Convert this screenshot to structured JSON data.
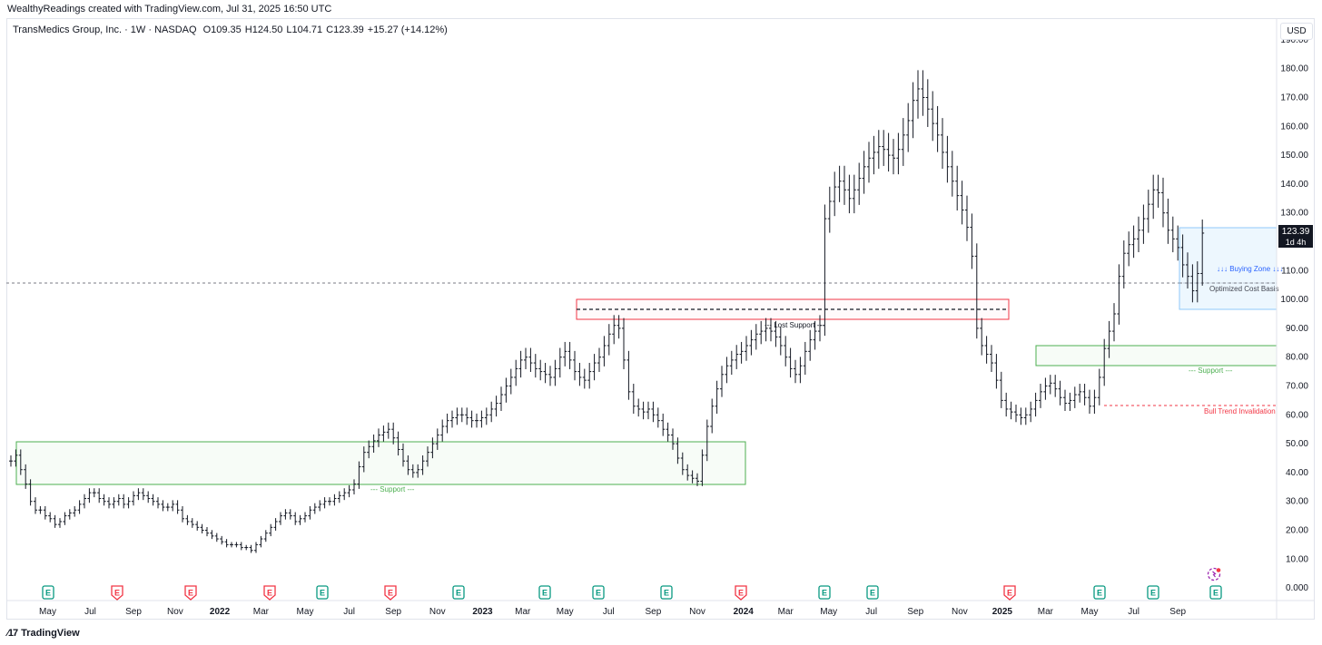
{
  "header": {
    "created_by": "WealthyReadings created with TradingView.com, Jul 31, 2025 16:50 UTC"
  },
  "legend": {
    "symbol": "TransMedics Group, Inc. · 1W · NASDAQ",
    "open": "O109.35",
    "high": "H124.50",
    "low": "L104.71",
    "close": "C123.39",
    "change": "+15.27 (+14.12%)"
  },
  "currency_button": "USD",
  "price_tag": {
    "price": "123.39",
    "countdown": "1d 4h"
  },
  "footer": {
    "brand": "TradingView",
    "logo_icon": "tradingview-logo-icon"
  },
  "colors": {
    "price_tag_bg": "#131722",
    "support_green": "#4caf50",
    "lost_support_red": "#f23645",
    "buy_zone_blue": "#2962ff"
  },
  "chart_data": {
    "type": "ohlc",
    "ylim": [
      -5,
      195
    ],
    "y_ticks": [
      0,
      10,
      20,
      30,
      40,
      50,
      60,
      70,
      80,
      90,
      100,
      110,
      120,
      130,
      140,
      150,
      160,
      170,
      180,
      190
    ],
    "y_tick_labels": [
      "0.000",
      "10.00",
      "20.00",
      "30.00",
      "40.00",
      "50.00",
      "60.00",
      "70.00",
      "80.00",
      "90.00",
      "100.00",
      "110.00",
      "120.00",
      "130.00",
      "140.00",
      "150.00",
      "160.00",
      "170.00",
      "180.00",
      "190.00"
    ],
    "xlim": [
      0,
      277
    ],
    "x_ticks": [
      {
        "week": 7.5,
        "label": "May",
        "bold": false
      },
      {
        "week": 16.2,
        "label": "Jul",
        "bold": false
      },
      {
        "week": 25,
        "label": "Sep",
        "bold": false
      },
      {
        "week": 33.5,
        "label": "Nov",
        "bold": false
      },
      {
        "week": 42.6,
        "label": "2022",
        "bold": true
      },
      {
        "week": 51,
        "label": "Mar",
        "bold": false
      },
      {
        "week": 60,
        "label": "May",
        "bold": false
      },
      {
        "week": 69,
        "label": "Jul",
        "bold": false
      },
      {
        "week": 78,
        "label": "Sep",
        "bold": false
      },
      {
        "week": 87,
        "label": "Nov",
        "bold": false
      },
      {
        "week": 96.2,
        "label": "2023",
        "bold": true
      },
      {
        "week": 104.4,
        "label": "Mar",
        "bold": false
      },
      {
        "week": 113,
        "label": "May",
        "bold": false
      },
      {
        "week": 121.9,
        "label": "Jul",
        "bold": false
      },
      {
        "week": 131,
        "label": "Sep",
        "bold": false
      },
      {
        "week": 140,
        "label": "Nov",
        "bold": false
      },
      {
        "week": 149.4,
        "label": "2024",
        "bold": true
      },
      {
        "week": 158,
        "label": "Mar",
        "bold": false
      },
      {
        "week": 166.8,
        "label": "May",
        "bold": false
      },
      {
        "week": 175.5,
        "label": "Jul",
        "bold": false
      },
      {
        "week": 184.5,
        "label": "Sep",
        "bold": false
      },
      {
        "week": 193.5,
        "label": "Nov",
        "bold": false
      },
      {
        "week": 202.2,
        "label": "2025",
        "bold": true
      },
      {
        "week": 211,
        "label": "Mar",
        "bold": false
      },
      {
        "week": 220,
        "label": "May",
        "bold": false
      },
      {
        "week": 229,
        "label": "Jul",
        "bold": false
      },
      {
        "week": 238,
        "label": "Sep",
        "bold": false
      }
    ],
    "weekly_closes": [
      [
        0,
        44
      ],
      [
        1,
        46
      ],
      [
        2,
        41
      ],
      [
        3,
        36
      ],
      [
        4,
        30
      ],
      [
        5,
        27
      ],
      [
        6,
        27
      ],
      [
        7,
        25
      ],
      [
        8,
        24
      ],
      [
        9,
        22
      ],
      [
        10,
        23
      ],
      [
        11,
        25
      ],
      [
        12,
        26
      ],
      [
        13,
        27
      ],
      [
        14,
        29
      ],
      [
        15,
        31
      ],
      [
        16,
        33
      ],
      [
        17,
        33
      ],
      [
        18,
        31
      ],
      [
        19,
        30
      ],
      [
        20,
        29
      ],
      [
        21,
        30
      ],
      [
        22,
        31
      ],
      [
        23,
        29
      ],
      [
        24,
        30
      ],
      [
        25,
        32
      ],
      [
        26,
        33
      ],
      [
        27,
        32
      ],
      [
        28,
        31
      ],
      [
        29,
        30
      ],
      [
        30,
        29
      ],
      [
        31,
        28
      ],
      [
        32,
        28
      ],
      [
        33,
        29
      ],
      [
        34,
        27
      ],
      [
        35,
        24
      ],
      [
        36,
        23
      ],
      [
        37,
        22
      ],
      [
        38,
        21
      ],
      [
        39,
        20
      ],
      [
        40,
        19
      ],
      [
        41,
        18
      ],
      [
        42,
        17
      ],
      [
        43,
        16
      ],
      [
        44,
        15
      ],
      [
        45,
        15
      ],
      [
        46,
        15
      ],
      [
        47,
        14
      ],
      [
        48,
        14
      ],
      [
        49,
        13
      ],
      [
        50,
        15
      ],
      [
        51,
        17
      ],
      [
        52,
        19
      ],
      [
        53,
        21
      ],
      [
        54,
        23
      ],
      [
        55,
        25
      ],
      [
        56,
        26
      ],
      [
        57,
        25
      ],
      [
        58,
        23
      ],
      [
        59,
        24
      ],
      [
        60,
        25
      ],
      [
        61,
        27
      ],
      [
        62,
        28
      ],
      [
        63,
        29
      ],
      [
        64,
        30
      ],
      [
        65,
        30
      ],
      [
        66,
        31
      ],
      [
        67,
        32
      ],
      [
        68,
        33
      ],
      [
        69,
        34
      ],
      [
        70,
        36
      ],
      [
        71,
        42
      ],
      [
        72,
        47
      ],
      [
        73,
        49
      ],
      [
        74,
        51
      ],
      [
        75,
        53
      ],
      [
        76,
        54
      ],
      [
        77,
        55
      ],
      [
        78,
        52
      ],
      [
        79,
        48
      ],
      [
        80,
        44
      ],
      [
        81,
        41
      ],
      [
        82,
        40
      ],
      [
        83,
        41
      ],
      [
        84,
        44
      ],
      [
        85,
        47
      ],
      [
        86,
        50
      ],
      [
        87,
        53
      ],
      [
        88,
        56
      ],
      [
        89,
        58
      ],
      [
        90,
        59
      ],
      [
        91,
        60
      ],
      [
        92,
        60
      ],
      [
        93,
        59
      ],
      [
        94,
        58
      ],
      [
        95,
        58
      ],
      [
        96,
        59
      ],
      [
        97,
        60
      ],
      [
        98,
        62
      ],
      [
        99,
        64
      ],
      [
        100,
        67
      ],
      [
        101,
        70
      ],
      [
        102,
        73
      ],
      [
        103,
        76
      ],
      [
        104,
        79
      ],
      [
        105,
        80
      ],
      [
        106,
        78
      ],
      [
        107,
        76
      ],
      [
        108,
        75
      ],
      [
        109,
        74
      ],
      [
        110,
        73
      ],
      [
        111,
        76
      ],
      [
        112,
        80
      ],
      [
        113,
        82
      ],
      [
        114,
        79
      ],
      [
        115,
        75
      ],
      [
        116,
        73
      ],
      [
        117,
        72
      ],
      [
        118,
        75
      ],
      [
        119,
        78
      ],
      [
        120,
        80
      ],
      [
        121,
        84
      ],
      [
        122,
        88
      ],
      [
        123,
        91
      ],
      [
        124,
        90
      ],
      [
        125,
        79
      ],
      [
        126,
        68
      ],
      [
        127,
        63
      ],
      [
        128,
        62
      ],
      [
        129,
        61
      ],
      [
        130,
        62
      ],
      [
        131,
        60
      ],
      [
        132,
        58
      ],
      [
        133,
        55
      ],
      [
        134,
        53
      ],
      [
        135,
        50
      ],
      [
        136,
        45
      ],
      [
        137,
        41
      ],
      [
        138,
        39
      ],
      [
        139,
        38
      ],
      [
        140,
        37
      ],
      [
        141,
        46
      ],
      [
        142,
        56
      ],
      [
        143,
        63
      ],
      [
        144,
        69
      ],
      [
        145,
        74
      ],
      [
        146,
        77
      ],
      [
        147,
        79
      ],
      [
        148,
        81
      ],
      [
        149,
        82
      ],
      [
        150,
        84
      ],
      [
        151,
        86
      ],
      [
        152,
        88
      ],
      [
        153,
        89
      ],
      [
        154,
        90
      ],
      [
        155,
        89
      ],
      [
        156,
        87
      ],
      [
        157,
        84
      ],
      [
        158,
        80
      ],
      [
        159,
        76
      ],
      [
        160,
        74
      ],
      [
        161,
        77
      ],
      [
        162,
        82
      ],
      [
        163,
        86
      ],
      [
        164,
        89
      ],
      [
        165,
        91
      ],
      [
        166,
        128
      ],
      [
        167,
        134
      ],
      [
        168,
        139
      ],
      [
        169,
        141
      ],
      [
        170,
        138
      ],
      [
        171,
        135
      ],
      [
        172,
        138
      ],
      [
        173,
        142
      ],
      [
        174,
        146
      ],
      [
        175,
        149
      ],
      [
        176,
        151
      ],
      [
        177,
        153
      ],
      [
        178,
        152
      ],
      [
        179,
        150
      ],
      [
        180,
        149
      ],
      [
        181,
        152
      ],
      [
        182,
        157
      ],
      [
        183,
        162
      ],
      [
        184,
        169
      ],
      [
        185,
        173
      ],
      [
        186,
        170
      ],
      [
        187,
        166
      ],
      [
        188,
        161
      ],
      [
        189,
        157
      ],
      [
        190,
        151
      ],
      [
        191,
        146
      ],
      [
        192,
        141
      ],
      [
        193,
        136
      ],
      [
        194,
        131
      ],
      [
        195,
        125
      ],
      [
        196,
        115
      ],
      [
        197,
        90
      ],
      [
        198,
        84
      ],
      [
        199,
        81
      ],
      [
        200,
        78
      ],
      [
        201,
        72
      ],
      [
        202,
        65
      ],
      [
        203,
        62
      ],
      [
        204,
        61
      ],
      [
        205,
        60
      ],
      [
        206,
        59
      ],
      [
        207,
        60
      ],
      [
        208,
        62
      ],
      [
        209,
        65
      ],
      [
        210,
        68
      ],
      [
        211,
        70
      ],
      [
        212,
        71
      ],
      [
        213,
        69
      ],
      [
        214,
        66
      ],
      [
        215,
        64
      ],
      [
        216,
        65
      ],
      [
        217,
        67
      ],
      [
        218,
        68
      ],
      [
        219,
        66
      ],
      [
        220,
        63
      ],
      [
        221,
        66
      ],
      [
        222,
        73
      ],
      [
        223,
        83
      ],
      [
        224,
        89
      ],
      [
        225,
        95
      ],
      [
        226,
        108
      ],
      [
        227,
        116
      ],
      [
        228,
        119
      ],
      [
        229,
        121
      ],
      [
        230,
        124
      ],
      [
        231,
        128
      ],
      [
        232,
        133
      ],
      [
        233,
        138
      ],
      [
        234,
        137
      ],
      [
        235,
        130
      ],
      [
        236,
        124
      ],
      [
        237,
        121
      ],
      [
        238,
        118
      ],
      [
        239,
        112
      ],
      [
        240,
        108
      ],
      [
        241,
        103
      ],
      [
        242,
        109
      ],
      [
        243,
        123
      ]
    ]
  }
}
